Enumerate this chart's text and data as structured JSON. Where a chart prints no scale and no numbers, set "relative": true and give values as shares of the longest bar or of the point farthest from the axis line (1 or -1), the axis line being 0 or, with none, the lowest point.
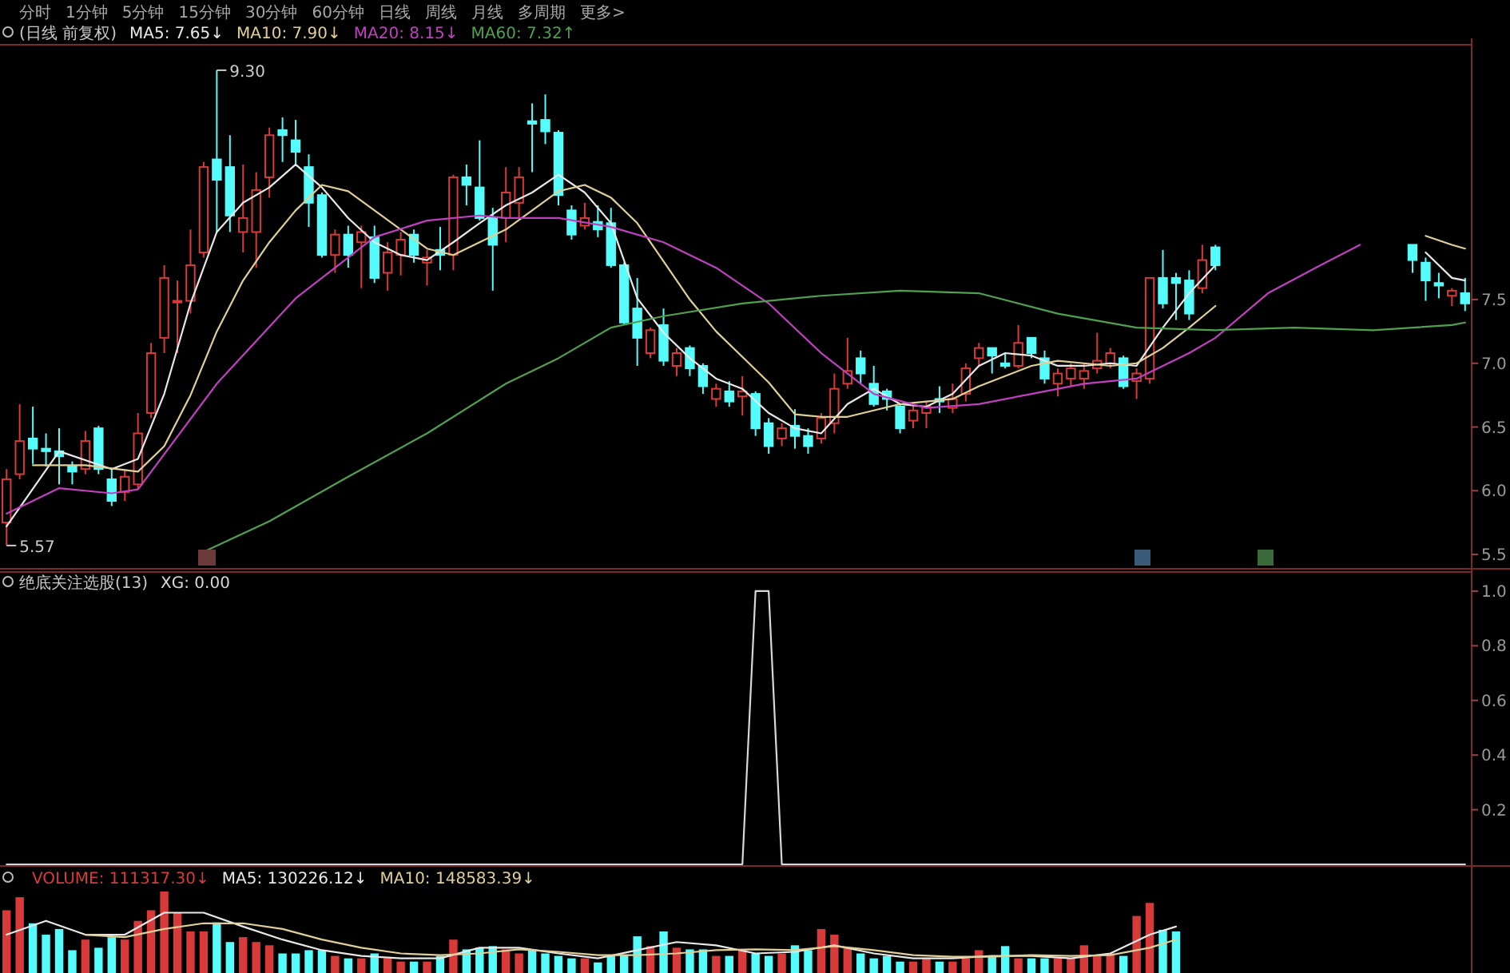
{
  "chart_data": [
    {
      "type": "candlestick",
      "title": "(日线 前复权)",
      "legend": "top left",
      "tick_labels": "y",
      "annotations": [
        "9.30",
        "5.57",
        "分时",
        "1分钟",
        "5分钟",
        "15分钟",
        "30分钟",
        "60分钟",
        "日线",
        "周线",
        "月线",
        "多周期",
        "更多>"
      ],
      "categories": [
        null,
        null,
        null,
        null,
        null,
        null,
        null,
        null,
        null,
        null,
        null,
        null,
        null,
        null,
        null,
        null,
        null,
        null,
        null,
        null,
        null,
        null,
        null,
        null,
        null,
        null,
        null,
        null,
        null,
        null,
        null,
        null,
        null,
        null,
        null,
        null,
        null,
        null,
        null,
        null,
        null,
        null,
        null,
        null,
        null,
        null,
        null,
        null,
        null,
        null,
        null,
        null,
        null,
        null,
        null,
        null,
        null,
        null,
        null,
        null,
        null,
        null,
        null,
        null,
        null,
        null,
        null,
        null,
        null,
        null,
        null,
        null,
        null,
        null,
        null,
        null,
        null,
        null,
        null,
        null,
        null,
        null,
        null,
        null,
        null,
        null,
        null,
        null,
        null,
        null,
        null,
        null,
        null,
        null,
        null,
        null,
        null,
        null,
        null,
        null,
        null,
        null,
        null,
        null,
        null,
        null,
        null,
        null,
        null,
        null,
        null,
        null
      ],
      "ohlc": [
        [
          5.75,
          6.17,
          5.57,
          6.09
        ],
        [
          6.13,
          6.68,
          6.09,
          6.39
        ],
        [
          6.41,
          6.66,
          6.21,
          6.33
        ],
        [
          6.33,
          6.45,
          6.19,
          6.31
        ],
        [
          6.31,
          6.49,
          6.05,
          6.27
        ],
        [
          6.19,
          6.23,
          6.05,
          6.15
        ],
        [
          6.17,
          6.47,
          6.13,
          6.39
        ],
        [
          6.49,
          6.51,
          6.13,
          6.17
        ],
        [
          6.09,
          6.17,
          5.88,
          5.92
        ],
        [
          5.99,
          6.17,
          5.92,
          6.11
        ],
        [
          6.05,
          6.61,
          6.01,
          6.45
        ],
        [
          6.61,
          7.16,
          6.57,
          7.08
        ],
        [
          7.2,
          7.77,
          7.08,
          7.67
        ],
        [
          7.49,
          7.65,
          7.08,
          7.49
        ],
        [
          7.49,
          8.05,
          7.39,
          7.77
        ],
        [
          7.87,
          8.58,
          7.83,
          8.54
        ],
        [
          8.6,
          9.3,
          8.03,
          8.44
        ],
        [
          8.54,
          8.79,
          8.03,
          8.16
        ],
        [
          8.03,
          8.56,
          7.87,
          8.14
        ],
        [
          8.03,
          8.5,
          7.75,
          8.36
        ],
        [
          8.46,
          8.85,
          8.3,
          8.79
        ],
        [
          8.83,
          8.93,
          8.58,
          8.79
        ],
        [
          8.75,
          8.91,
          8.56,
          8.66
        ],
        [
          8.54,
          8.64,
          8.07,
          8.26
        ],
        [
          8.32,
          8.34,
          7.83,
          7.85
        ],
        [
          7.85,
          8.05,
          7.71,
          8.01
        ],
        [
          8.01,
          8.08,
          7.75,
          7.85
        ],
        [
          7.95,
          8.08,
          7.59,
          8.03
        ],
        [
          7.99,
          8.08,
          7.63,
          7.67
        ],
        [
          7.71,
          7.95,
          7.57,
          7.87
        ],
        [
          7.85,
          8.03,
          7.69,
          7.97
        ],
        [
          8.01,
          8.05,
          7.79,
          7.85
        ],
        [
          7.79,
          7.89,
          7.61,
          7.83
        ],
        [
          7.89,
          8.07,
          7.73,
          7.85
        ],
        [
          7.85,
          8.48,
          7.73,
          8.46
        ],
        [
          8.46,
          8.56,
          8.24,
          8.4
        ],
        [
          8.38,
          8.75,
          8.12,
          8.14
        ],
        [
          8.14,
          8.22,
          7.57,
          7.93
        ],
        [
          8.14,
          8.54,
          7.95,
          8.34
        ],
        [
          8.26,
          8.54,
          8.14,
          8.46
        ],
        [
          8.9,
          9.04,
          8.5,
          8.88
        ],
        [
          8.91,
          9.11,
          8.72,
          8.82
        ],
        [
          8.81,
          8.83,
          8.24,
          8.32
        ],
        [
          8.2,
          8.24,
          7.97,
          8.01
        ],
        [
          8.08,
          8.26,
          8.05,
          8.14
        ],
        [
          8.11,
          8.24,
          7.99,
          8.05
        ],
        [
          8.1,
          8.22,
          7.75,
          7.77
        ],
        [
          7.77,
          7.79,
          7.3,
          7.32
        ],
        [
          7.43,
          7.67,
          6.98,
          7.2
        ],
        [
          7.08,
          7.28,
          7.04,
          7.26
        ],
        [
          7.3,
          7.43,
          6.98,
          7.02
        ],
        [
          6.98,
          7.12,
          6.9,
          7.08
        ],
        [
          7.12,
          7.14,
          6.9,
          6.96
        ],
        [
          6.98,
          7.0,
          6.76,
          6.82
        ],
        [
          6.72,
          6.84,
          6.66,
          6.8
        ],
        [
          6.78,
          6.86,
          6.66,
          6.7
        ],
        [
          6.74,
          6.9,
          6.59,
          6.78
        ],
        [
          6.76,
          6.78,
          6.43,
          6.49
        ],
        [
          6.53,
          6.57,
          6.29,
          6.35
        ],
        [
          6.41,
          6.53,
          6.35,
          6.49
        ],
        [
          6.51,
          6.64,
          6.33,
          6.43
        ],
        [
          6.43,
          6.49,
          6.29,
          6.35
        ],
        [
          6.41,
          6.61,
          6.37,
          6.57
        ],
        [
          6.53,
          6.92,
          6.45,
          6.8
        ],
        [
          6.84,
          7.2,
          6.8,
          6.94
        ],
        [
          7.04,
          7.1,
          6.84,
          6.92
        ],
        [
          6.84,
          6.98,
          6.66,
          6.68
        ],
        [
          6.78,
          6.8,
          6.63,
          6.72
        ],
        [
          6.66,
          6.68,
          6.45,
          6.49
        ],
        [
          6.55,
          6.68,
          6.49,
          6.63
        ],
        [
          6.61,
          6.7,
          6.49,
          6.66
        ],
        [
          6.72,
          6.82,
          6.61,
          6.7
        ],
        [
          6.65,
          6.84,
          6.61,
          6.72
        ],
        [
          6.76,
          7.0,
          6.7,
          6.96
        ],
        [
          7.04,
          7.16,
          6.98,
          7.12
        ],
        [
          7.12,
          7.12,
          6.92,
          7.06
        ],
        [
          7.0,
          7.08,
          6.96,
          6.98
        ],
        [
          6.98,
          7.3,
          6.96,
          7.16
        ],
        [
          7.2,
          7.2,
          7.04,
          7.08
        ],
        [
          7.04,
          7.1,
          6.84,
          6.88
        ],
        [
          6.84,
          6.96,
          6.74,
          6.92
        ],
        [
          6.88,
          7.0,
          6.82,
          6.96
        ],
        [
          6.88,
          7.0,
          6.8,
          6.94
        ],
        [
          6.96,
          7.24,
          6.92,
          7.02
        ],
        [
          7.0,
          7.12,
          6.96,
          7.08
        ],
        [
          7.04,
          7.06,
          6.8,
          6.82
        ],
        [
          6.86,
          6.96,
          6.72,
          6.92
        ],
        [
          6.88,
          7.67,
          6.84,
          7.67
        ],
        [
          7.67,
          7.89,
          7.43,
          7.47
        ],
        [
          7.67,
          7.71,
          7.34,
          7.63
        ],
        [
          7.65,
          7.73,
          7.34,
          7.39
        ],
        [
          7.59,
          7.93,
          7.55,
          7.81
        ],
        [
          7.91,
          7.93,
          7.73,
          7.77
        ],
        null,
        null,
        null,
        null,
        null,
        null,
        null,
        null,
        null,
        null,
        null,
        null,
        null,
        null,
        [
          7.93,
          7.93,
          7.71,
          7.81
        ],
        [
          7.79,
          7.83,
          7.49,
          7.65
        ],
        [
          7.63,
          7.71,
          7.51,
          7.61
        ],
        [
          7.53,
          7.59,
          7.45,
          7.57
        ],
        [
          7.55,
          7.67,
          7.41,
          7.47
        ]
      ],
      "colors": [
        "#d83a3a",
        "#d83a3a",
        "#54fcfc",
        "#54fcfc",
        "#54fcfc",
        "#54fcfc",
        "#d83a3a",
        "#54fcfc",
        "#54fcfc",
        "#d83a3a",
        "#d83a3a",
        "#d83a3a",
        "#d83a3a",
        "#d83a3a",
        "#d83a3a",
        "#d83a3a",
        "#54fcfc",
        "#54fcfc",
        "#d83a3a",
        "#d83a3a",
        "#d83a3a",
        "#54fcfc",
        "#54fcfc",
        "#54fcfc",
        "#54fcfc",
        "#d83a3a",
        "#54fcfc",
        "#d83a3a",
        "#54fcfc",
        "#d83a3a",
        "#d83a3a",
        "#54fcfc",
        "#d83a3a",
        "#54fcfc",
        "#d83a3a",
        "#54fcfc",
        "#54fcfc",
        "#54fcfc",
        "#d83a3a",
        "#d83a3a",
        "#54fcfc",
        "#54fcfc",
        "#54fcfc",
        "#54fcfc",
        "#d83a3a",
        "#54fcfc",
        "#54fcfc",
        "#54fcfc",
        "#54fcfc",
        "#d83a3a",
        "#54fcfc",
        "#d83a3a",
        "#54fcfc",
        "#54fcfc",
        "#d83a3a",
        "#54fcfc",
        "#d83a3a",
        "#54fcfc",
        "#54fcfc",
        "#d83a3a",
        "#54fcfc",
        "#54fcfc",
        "#d83a3a",
        "#d83a3a",
        "#d83a3a",
        "#54fcfc",
        "#54fcfc",
        "#54fcfc",
        "#54fcfc",
        "#d83a3a",
        "#d83a3a",
        "#54fcfc",
        "#d83a3a",
        "#d83a3a",
        "#d83a3a",
        "#54fcfc",
        "#54fcfc",
        "#d83a3a",
        "#54fcfc",
        "#54fcfc",
        "#d83a3a",
        "#d83a3a",
        "#d83a3a",
        "#d83a3a",
        "#d83a3a",
        "#54fcfc",
        "#d83a3a",
        "#d83a3a",
        "#54fcfc",
        "#54fcfc",
        "#54fcfc",
        "#d83a3a",
        "#54fcfc",
        null,
        null,
        null,
        null,
        null,
        null,
        null,
        null,
        null,
        null,
        null,
        null,
        null,
        null,
        "#54fcfc",
        "#54fcfc",
        "#54fcfc",
        "#d83a3a",
        "#54fcfc"
      ],
      "ylim": [
        5.4,
        9.5
      ],
      "yticks": [
        5.5,
        {
          "value": 6,
          "label": "6.0"
        },
        6.5,
        {
          "value": 7,
          "label": "7.0"
        },
        7.5
      ],
      "series": [
        {
          "name": "MA5: 7.65↓",
          "type": "line",
          "color": "#e8e8e8",
          "values": [
            5.72,
            null,
            null,
            null,
            6.31,
            null,
            null,
            null,
            6.17,
            null,
            6.25,
            null,
            6.76,
            null,
            7.47,
            null,
            8.03,
            null,
            8.26,
            null,
            8.38,
            null,
            8.56,
            null,
            8.38,
            null,
            8.14,
            null,
            7.95,
            null,
            7.85,
            null,
            7.81,
            null,
            7.95,
            null,
            8.1,
            null,
            8.24,
            null,
            8.34,
            null,
            8.48,
            null,
            8.34,
            null,
            8.1,
            null,
            7.51,
            null,
            7.24,
            null,
            7.04,
            null,
            6.88,
            null,
            6.8,
            null,
            6.61,
            null,
            6.49,
            null,
            6.45,
            null,
            6.68,
            null,
            6.8,
            null,
            6.68,
            null,
            6.66,
            null,
            6.76,
            null,
            6.98,
            null,
            7.08,
            null,
            7.06,
            null,
            6.98,
            null,
            6.98,
            null,
            7.0,
            null,
            6.98,
            null,
            7.28,
            null,
            7.55,
            null,
            7.77,
            null,
            null,
            null,
            null,
            null,
            null,
            null,
            null,
            null,
            null,
            null,
            null,
            null,
            null,
            null,
            7.87,
            null,
            7.67,
            7.65
          ]
        },
        {
          "name": "MA10: 7.90↓",
          "type": "line",
          "color": "#e0cf96",
          "values": [
            null,
            null,
            6.2,
            null,
            null,
            null,
            6.2,
            null,
            null,
            null,
            6.15,
            null,
            6.35,
            null,
            6.75,
            null,
            7.25,
            null,
            7.65,
            null,
            7.95,
            null,
            8.2,
            null,
            8.4,
            null,
            8.35,
            null,
            8.2,
            null,
            8.05,
            null,
            7.9,
            null,
            7.85,
            null,
            7.95,
            null,
            8.05,
            null,
            8.2,
            null,
            8.35,
            null,
            8.4,
            null,
            8.3,
            null,
            8.1,
            null,
            7.8,
            null,
            7.5,
            null,
            7.25,
            null,
            7.05,
            null,
            6.85,
            null,
            6.6,
            null,
            6.58,
            null,
            6.58,
            null,
            6.63,
            null,
            6.68,
            null,
            6.7,
            null,
            6.72,
            null,
            6.82,
            null,
            6.9,
            null,
            6.98,
            null,
            7.02,
            null,
            7.0,
            null,
            6.98,
            null,
            7.0,
            null,
            7.12,
            null,
            7.28,
            null,
            7.45,
            null,
            null,
            null,
            null,
            null,
            null,
            null,
            null,
            null,
            null,
            null,
            null,
            null,
            null,
            null,
            8.0,
            null,
            7.93,
            7.9
          ]
        },
        {
          "name": "MA20: 8.15↓",
          "type": "line",
          "color": "#c040c0",
          "values": [
            5.82,
            null,
            null,
            null,
            6.02,
            null,
            null,
            null,
            5.98,
            null,
            6.01,
            null,
            null,
            null,
            null,
            null,
            6.84,
            null,
            null,
            null,
            null,
            null,
            7.51,
            null,
            null,
            null,
            null,
            null,
            7.99,
            null,
            null,
            null,
            8.12,
            null,
            null,
            null,
            8.16,
            null,
            8.14,
            null,
            null,
            null,
            8.14,
            null,
            null,
            null,
            8.07,
            null,
            null,
            null,
            7.95,
            null,
            null,
            null,
            7.75,
            null,
            null,
            null,
            7.47,
            null,
            null,
            null,
            7.08,
            null,
            null,
            null,
            6.76,
            null,
            null,
            null,
            6.65,
            null,
            null,
            null,
            6.68,
            null,
            null,
            null,
            6.76,
            null,
            null,
            null,
            6.84,
            null,
            null,
            null,
            6.88,
            null,
            null,
            null,
            7.08,
            null,
            7.2,
            null,
            null,
            null,
            7.55,
            null,
            null,
            null,
            7.77,
            null,
            null,
            7.93,
            null,
            null,
            null,
            null,
            null,
            null,
            null,
            null
          ]
        },
        {
          "name": "MA60: 7.32↑",
          "type": "line",
          "color": "#50a050",
          "values": [
            null,
            null,
            null,
            null,
            null,
            null,
            null,
            null,
            null,
            null,
            null,
            null,
            null,
            null,
            null,
            5.52,
            null,
            null,
            null,
            null,
            5.76,
            null,
            null,
            null,
            null,
            null,
            6.11,
            null,
            null,
            null,
            null,
            null,
            6.45,
            null,
            null,
            null,
            null,
            null,
            6.84,
            null,
            null,
            null,
            7.04,
            null,
            null,
            null,
            7.28,
            null,
            null,
            null,
            7.37,
            null,
            null,
            null,
            null,
            null,
            7.47,
            null,
            null,
            null,
            null,
            null,
            7.53,
            null,
            null,
            null,
            null,
            null,
            7.57,
            null,
            null,
            null,
            null,
            null,
            7.55,
            null,
            null,
            null,
            null,
            null,
            7.39,
            null,
            null,
            null,
            null,
            null,
            7.28,
            null,
            null,
            null,
            null,
            null,
            7.26,
            null,
            null,
            null,
            null,
            null,
            7.28,
            null,
            null,
            null,
            null,
            null,
            7.26,
            null,
            null,
            null,
            null,
            null,
            7.3,
            7.32
          ]
        }
      ]
    },
    {
      "type": "line",
      "title": "绝底关注选股(13)",
      "legend": "top left",
      "tick_labels": "y",
      "categories": [
        null,
        null,
        null,
        null,
        null,
        null,
        null,
        null,
        null,
        null,
        null,
        null,
        null,
        null,
        null,
        null,
        null,
        null,
        null,
        null,
        null,
        null,
        null,
        null,
        null,
        null,
        null,
        null,
        null,
        null,
        null,
        null,
        null,
        null,
        null,
        null,
        null,
        null,
        null,
        null,
        null,
        null,
        null,
        null,
        null,
        null,
        null,
        null,
        null,
        null,
        null,
        null,
        null,
        null,
        null,
        null,
        null,
        null,
        null,
        null,
        null,
        null,
        null,
        null,
        null,
        null,
        null,
        null,
        null,
        null,
        null,
        null,
        null,
        null,
        null,
        null,
        null,
        null,
        null,
        null,
        null,
        null,
        null,
        null,
        null,
        null,
        null,
        null,
        null,
        null,
        null,
        null,
        null,
        null,
        null,
        null,
        null,
        null,
        null,
        null,
        null,
        null,
        null,
        null,
        null,
        null,
        null,
        null,
        null,
        null,
        null,
        null
      ],
      "ylim": [
        0,
        1.07
      ],
      "yticks": [
        0.2,
        0.4,
        0.6,
        0.8,
        {
          "value": 1,
          "label": "1.0"
        }
      ],
      "series": [
        {
          "name": "XG: 0.00",
          "color": "#d8d8d8",
          "values": [
            0,
            0,
            0,
            0,
            0,
            0,
            0,
            0,
            0,
            0,
            0,
            0,
            0,
            0,
            0,
            0,
            0,
            0,
            0,
            0,
            0,
            0,
            0,
            0,
            0,
            0,
            0,
            0,
            0,
            0,
            0,
            0,
            0,
            0,
            0,
            0,
            0,
            0,
            0,
            0,
            0,
            0,
            0,
            0,
            0,
            0,
            0,
            0,
            0,
            0,
            0,
            0,
            0,
            0,
            0,
            0,
            0,
            1,
            1,
            0,
            0,
            0,
            0,
            0,
            0,
            0,
            0,
            0,
            0,
            0,
            0,
            0,
            0,
            0,
            0,
            0,
            0,
            0,
            0,
            0,
            0,
            0,
            0,
            0,
            0,
            0,
            0,
            0,
            0,
            0,
            0,
            0,
            0,
            0,
            0,
            0,
            0,
            0,
            0,
            0,
            0,
            0,
            0,
            0,
            0,
            0,
            0,
            0,
            0,
            0,
            0,
            0
          ]
        }
      ]
    },
    {
      "type": "bar",
      "relative": true,
      "legend": "top left",
      "tick_labels": false,
      "categories": [
        null,
        null,
        null,
        null,
        null,
        null,
        null,
        null,
        null,
        null,
        null,
        null,
        null,
        null,
        null,
        null,
        null,
        null,
        null,
        null,
        null,
        null,
        null,
        null,
        null,
        null,
        null,
        null,
        null,
        null,
        null,
        null,
        null,
        null,
        null,
        null,
        null,
        null,
        null,
        null,
        null,
        null,
        null,
        null,
        null,
        null,
        null,
        null,
        null,
        null,
        null,
        null,
        null,
        null,
        null,
        null,
        null,
        null,
        null,
        null,
        null,
        null,
        null,
        null,
        null,
        null,
        null,
        null,
        null,
        null,
        null,
        null,
        null,
        null,
        null,
        null,
        null,
        null,
        null,
        null,
        null,
        null,
        null,
        null,
        null,
        null,
        null,
        null,
        null,
        null,
        null,
        null,
        null,
        null,
        null,
        null,
        null,
        null,
        null,
        null,
        null,
        null,
        null,
        null,
        null,
        null,
        null,
        null,
        null,
        null,
        null,
        null
      ],
      "series": [
        {
          "name": "VOLUME: 111317.30↓",
          "type": "bar",
          "values": [
            0.77,
            0.93,
            0.61,
            0.47,
            0.54,
            0.28,
            0.41,
            0.31,
            0.44,
            0.41,
            0.64,
            0.77,
            1,
            0.74,
            0.51,
            0.51,
            0.62,
            0.38,
            0.44,
            0.38,
            0.34,
            0.24,
            0.24,
            0.28,
            0.28,
            0.21,
            0.18,
            0.18,
            0.24,
            0.18,
            0.14,
            0.14,
            0.14,
            0.21,
            0.41,
            0.29,
            0.31,
            0.33,
            0.29,
            0.24,
            0.28,
            0.24,
            0.21,
            0.18,
            0.18,
            0.13,
            0.22,
            0.22,
            0.45,
            0.33,
            0.51,
            0.31,
            0.29,
            0.29,
            0.21,
            0.21,
            0.28,
            0.24,
            0.21,
            0.24,
            0.34,
            0.28,
            0.54,
            0.47,
            0.31,
            0.24,
            0.18,
            0.21,
            0.14,
            0.14,
            0.18,
            0.14,
            0.14,
            0.18,
            0.28,
            0.21,
            0.33,
            0.18,
            0.18,
            0.18,
            0.18,
            0.18,
            0.34,
            0.21,
            0.24,
            0.21,
            0.7,
            0.86,
            0.53,
            0.51,
            null,
            null,
            null,
            null,
            null,
            null,
            null,
            null,
            null,
            null,
            null,
            null,
            null,
            null,
            null,
            null,
            null,
            null,
            null,
            null,
            null,
            null
          ],
          "colors": [
            "#d83a3a",
            "#d83a3a",
            "#54fcfc",
            "#54fcfc",
            "#54fcfc",
            "#54fcfc",
            "#d83a3a",
            "#54fcfc",
            "#54fcfc",
            "#d83a3a",
            "#d83a3a",
            "#d83a3a",
            "#d83a3a",
            "#d83a3a",
            "#d83a3a",
            "#d83a3a",
            "#54fcfc",
            "#54fcfc",
            "#d83a3a",
            "#d83a3a",
            "#d83a3a",
            "#54fcfc",
            "#54fcfc",
            "#54fcfc",
            "#54fcfc",
            "#d83a3a",
            "#54fcfc",
            "#d83a3a",
            "#54fcfc",
            "#d83a3a",
            "#d83a3a",
            "#54fcfc",
            "#d83a3a",
            "#54fcfc",
            "#d83a3a",
            "#54fcfc",
            "#54fcfc",
            "#54fcfc",
            "#d83a3a",
            "#d83a3a",
            "#54fcfc",
            "#54fcfc",
            "#54fcfc",
            "#54fcfc",
            "#d83a3a",
            "#54fcfc",
            "#54fcfc",
            "#54fcfc",
            "#54fcfc",
            "#d83a3a",
            "#54fcfc",
            "#d83a3a",
            "#54fcfc",
            "#54fcfc",
            "#d83a3a",
            "#54fcfc",
            "#d83a3a",
            "#54fcfc",
            "#54fcfc",
            "#d83a3a",
            "#54fcfc",
            "#54fcfc",
            "#d83a3a",
            "#d83a3a",
            "#d83a3a",
            "#54fcfc",
            "#54fcfc",
            "#54fcfc",
            "#54fcfc",
            "#d83a3a",
            "#d83a3a",
            "#54fcfc",
            "#d83a3a",
            "#d83a3a",
            "#d83a3a",
            "#54fcfc",
            "#54fcfc",
            "#d83a3a",
            "#54fcfc",
            "#54fcfc",
            "#d83a3a",
            "#d83a3a",
            "#d83a3a",
            "#d83a3a",
            "#d83a3a",
            "#54fcfc",
            "#d83a3a",
            "#d83a3a",
            "#54fcfc",
            "#54fcfc",
            null,
            null,
            null,
            null,
            null,
            null,
            null,
            null,
            null,
            null,
            null,
            null,
            null,
            null,
            null,
            null,
            null,
            null,
            null,
            null,
            null,
            null
          ]
        },
        {
          "name": "MA5: 130226.12↓",
          "type": "line",
          "color": "#e8e8e8",
          "values": [
            0.47,
            null,
            null,
            0.64,
            null,
            null,
            0.47,
            null,
            null,
            0.47,
            null,
            null,
            0.74,
            null,
            null,
            0.74,
            null,
            null,
            0.57,
            null,
            null,
            0.41,
            null,
            null,
            0.28,
            null,
            null,
            0.21,
            null,
            null,
            0.18,
            null,
            null,
            0.18,
            null,
            null,
            0.31,
            null,
            null,
            0.31,
            null,
            null,
            0.24,
            null,
            null,
            0.18,
            null,
            null,
            0.28,
            null,
            null,
            0.38,
            null,
            null,
            0.34,
            null,
            null,
            0.24,
            null,
            null,
            0.26,
            null,
            null,
            0.34,
            null,
            null,
            0.24,
            null,
            null,
            0.18,
            null,
            null,
            0.18,
            null,
            null,
            0.21,
            null,
            null,
            0.21,
            null,
            null,
            0.18,
            null,
            null,
            0.24,
            null,
            null,
            0.47,
            null,
            0.57,
            null,
            null,
            null,
            null,
            null,
            null,
            null,
            null,
            null,
            null,
            null,
            null,
            null,
            null,
            null,
            null,
            null,
            null,
            null,
            null,
            null,
            null
          ]
        },
        {
          "name": "MA10: 148583.39↓",
          "type": "line",
          "color": "#e0cf96",
          "values": [
            null,
            null,
            null,
            null,
            null,
            null,
            0.47,
            null,
            null,
            0.44,
            null,
            null,
            0.54,
            null,
            null,
            0.61,
            null,
            null,
            0.61,
            null,
            null,
            0.54,
            null,
            null,
            0.41,
            null,
            null,
            0.31,
            null,
            null,
            0.24,
            null,
            null,
            0.22,
            null,
            null,
            0.24,
            null,
            null,
            0.29,
            null,
            null,
            0.26,
            null,
            null,
            0.22,
            null,
            null,
            0.22,
            null,
            null,
            0.24,
            null,
            null,
            0.28,
            null,
            null,
            0.29,
            null,
            null,
            0.28,
            null,
            null,
            0.33,
            null,
            null,
            0.28,
            null,
            null,
            0.22,
            null,
            null,
            0.2,
            null,
            null,
            0.2,
            null,
            null,
            0.22,
            null,
            null,
            0.21,
            null,
            null,
            0.22,
            null,
            null,
            0.31,
            null,
            0.41,
            null,
            null,
            null,
            null,
            null,
            null,
            null,
            null,
            null,
            null,
            null,
            null,
            null,
            null,
            null,
            null,
            null,
            null,
            null,
            null,
            null,
            null
          ]
        }
      ]
    }
  ]
}
